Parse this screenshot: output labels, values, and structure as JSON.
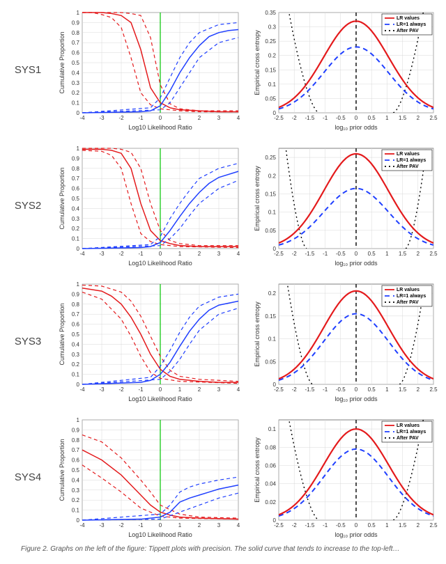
{
  "rows": [
    "SYS1",
    "SYS2",
    "SYS3",
    "SYS4"
  ],
  "colors": {
    "red": "#e41a1c",
    "blue": "#1f3fff",
    "green": "#00c400",
    "black": "#000000",
    "grid": "#d8d8d8",
    "bg": "#ffffff"
  },
  "tippett": {
    "xlabel": "Log10 Likelihood Ratio",
    "ylabel": "Cumulative Proportion",
    "xlim": [
      -4,
      4
    ],
    "ylim": [
      0,
      1
    ],
    "xticks": [
      -4,
      -3,
      -2,
      -1,
      0,
      1,
      2,
      3,
      4
    ],
    "yticks": [
      0,
      0.1,
      0.2,
      0.3,
      0.4,
      0.5,
      0.6,
      0.7,
      0.8,
      0.9,
      1
    ],
    "vline_x": 0,
    "line_width_main": 1.5,
    "line_width_dash": 1.2,
    "dash": "5,4",
    "sys": [
      {
        "red_main": [
          [
            -4,
            1.0
          ],
          [
            -3,
            1.0
          ],
          [
            -2.5,
            0.99
          ],
          [
            -2,
            0.97
          ],
          [
            -1.5,
            0.9
          ],
          [
            -1,
            0.63
          ],
          [
            -0.5,
            0.25
          ],
          [
            0,
            0.1
          ],
          [
            0.5,
            0.05
          ],
          [
            1,
            0.03
          ],
          [
            2,
            0.02
          ],
          [
            3,
            0.01
          ],
          [
            4,
            0.01
          ]
        ],
        "red_out_lo": [
          [
            -4,
            1.0
          ],
          [
            -3.5,
            1.0
          ],
          [
            -3,
            0.98
          ],
          [
            -2.5,
            0.95
          ],
          [
            -2,
            0.85
          ],
          [
            -1.5,
            0.55
          ],
          [
            -1,
            0.2
          ],
          [
            -0.5,
            0.08
          ],
          [
            0,
            0.04
          ],
          [
            1,
            0.02
          ],
          [
            2,
            0.01
          ],
          [
            4,
            0.01
          ]
        ],
        "red_out_hi": [
          [
            -4,
            1.0
          ],
          [
            -2,
            1.0
          ],
          [
            -1.5,
            0.99
          ],
          [
            -1,
            0.97
          ],
          [
            -0.5,
            0.75
          ],
          [
            0,
            0.28
          ],
          [
            0.5,
            0.09
          ],
          [
            1,
            0.04
          ],
          [
            2,
            0.02
          ],
          [
            4,
            0.02
          ]
        ],
        "blue_main": [
          [
            -4,
            0.0
          ],
          [
            -1,
            0.01
          ],
          [
            -0.5,
            0.02
          ],
          [
            0,
            0.07
          ],
          [
            0.5,
            0.22
          ],
          [
            1,
            0.4
          ],
          [
            1.5,
            0.55
          ],
          [
            2,
            0.67
          ],
          [
            2.5,
            0.76
          ],
          [
            3,
            0.8
          ],
          [
            3.5,
            0.82
          ],
          [
            4,
            0.83
          ]
        ],
        "blue_out_lo": [
          [
            -4,
            0.0
          ],
          [
            0,
            0.03
          ],
          [
            0.5,
            0.1
          ],
          [
            1,
            0.25
          ],
          [
            1.5,
            0.4
          ],
          [
            2,
            0.55
          ],
          [
            3,
            0.7
          ],
          [
            4,
            0.75
          ]
        ],
        "blue_out_hi": [
          [
            -4,
            0.0
          ],
          [
            -0.5,
            0.05
          ],
          [
            0,
            0.15
          ],
          [
            0.5,
            0.35
          ],
          [
            1,
            0.55
          ],
          [
            1.5,
            0.7
          ],
          [
            2,
            0.8
          ],
          [
            3,
            0.88
          ],
          [
            4,
            0.9
          ]
        ]
      },
      {
        "red_main": [
          [
            -4,
            0.99
          ],
          [
            -3,
            0.99
          ],
          [
            -2.5,
            0.98
          ],
          [
            -2,
            0.95
          ],
          [
            -1.5,
            0.8
          ],
          [
            -1,
            0.45
          ],
          [
            -0.5,
            0.18
          ],
          [
            0,
            0.08
          ],
          [
            0.5,
            0.05
          ],
          [
            1,
            0.03
          ],
          [
            2,
            0.02
          ],
          [
            4,
            0.02
          ]
        ],
        "red_out_lo": [
          [
            -4,
            0.98
          ],
          [
            -3,
            0.97
          ],
          [
            -2.5,
            0.93
          ],
          [
            -2,
            0.8
          ],
          [
            -1.5,
            0.45
          ],
          [
            -1,
            0.15
          ],
          [
            -0.5,
            0.07
          ],
          [
            0,
            0.04
          ],
          [
            1,
            0.02
          ],
          [
            4,
            0.01
          ]
        ],
        "red_out_hi": [
          [
            -4,
            1.0
          ],
          [
            -2.5,
            1.0
          ],
          [
            -2,
            0.99
          ],
          [
            -1.5,
            0.96
          ],
          [
            -1,
            0.8
          ],
          [
            -0.5,
            0.45
          ],
          [
            0,
            0.18
          ],
          [
            0.5,
            0.08
          ],
          [
            1,
            0.05
          ],
          [
            2,
            0.03
          ],
          [
            4,
            0.03
          ]
        ],
        "blue_main": [
          [
            -4,
            0.0
          ],
          [
            -1,
            0.01
          ],
          [
            -0.5,
            0.02
          ],
          [
            0,
            0.06
          ],
          [
            0.5,
            0.18
          ],
          [
            1,
            0.32
          ],
          [
            1.5,
            0.45
          ],
          [
            2,
            0.56
          ],
          [
            2.5,
            0.65
          ],
          [
            3,
            0.71
          ],
          [
            4,
            0.77
          ]
        ],
        "blue_out_lo": [
          [
            -4,
            0.0
          ],
          [
            0,
            0.03
          ],
          [
            0.5,
            0.1
          ],
          [
            1,
            0.2
          ],
          [
            1.5,
            0.33
          ],
          [
            2,
            0.45
          ],
          [
            3,
            0.6
          ],
          [
            4,
            0.68
          ]
        ],
        "blue_out_hi": [
          [
            -4,
            0.0
          ],
          [
            -0.5,
            0.04
          ],
          [
            0,
            0.12
          ],
          [
            0.5,
            0.3
          ],
          [
            1,
            0.45
          ],
          [
            1.5,
            0.58
          ],
          [
            2,
            0.7
          ],
          [
            3,
            0.8
          ],
          [
            4,
            0.85
          ]
        ]
      },
      {
        "red_main": [
          [
            -4,
            0.96
          ],
          [
            -3,
            0.93
          ],
          [
            -2.5,
            0.88
          ],
          [
            -2,
            0.8
          ],
          [
            -1.5,
            0.67
          ],
          [
            -1,
            0.5
          ],
          [
            -0.5,
            0.3
          ],
          [
            0,
            0.15
          ],
          [
            0.5,
            0.08
          ],
          [
            1,
            0.05
          ],
          [
            2,
            0.03
          ],
          [
            3,
            0.02
          ],
          [
            4,
            0.02
          ]
        ],
        "red_out_lo": [
          [
            -4,
            0.92
          ],
          [
            -3,
            0.85
          ],
          [
            -2,
            0.65
          ],
          [
            -1.5,
            0.48
          ],
          [
            -1,
            0.28
          ],
          [
            -0.5,
            0.12
          ],
          [
            0,
            0.06
          ],
          [
            1,
            0.03
          ],
          [
            4,
            0.01
          ]
        ],
        "red_out_hi": [
          [
            -4,
            0.99
          ],
          [
            -3,
            0.98
          ],
          [
            -2,
            0.92
          ],
          [
            -1.5,
            0.83
          ],
          [
            -1,
            0.68
          ],
          [
            -0.5,
            0.48
          ],
          [
            0,
            0.28
          ],
          [
            0.5,
            0.14
          ],
          [
            1,
            0.08
          ],
          [
            2,
            0.05
          ],
          [
            4,
            0.03
          ]
        ],
        "blue_main": [
          [
            -4,
            0.0
          ],
          [
            -1,
            0.02
          ],
          [
            -0.5,
            0.04
          ],
          [
            0,
            0.1
          ],
          [
            0.5,
            0.22
          ],
          [
            1,
            0.38
          ],
          [
            1.5,
            0.53
          ],
          [
            2,
            0.65
          ],
          [
            2.5,
            0.74
          ],
          [
            3,
            0.79
          ],
          [
            4,
            0.83
          ]
        ],
        "blue_out_lo": [
          [
            -4,
            0.0
          ],
          [
            0,
            0.05
          ],
          [
            0.5,
            0.13
          ],
          [
            1,
            0.25
          ],
          [
            1.5,
            0.4
          ],
          [
            2,
            0.54
          ],
          [
            3,
            0.7
          ],
          [
            4,
            0.76
          ]
        ],
        "blue_out_hi": [
          [
            -4,
            0.0
          ],
          [
            -0.5,
            0.07
          ],
          [
            0,
            0.18
          ],
          [
            0.5,
            0.34
          ],
          [
            1,
            0.52
          ],
          [
            1.5,
            0.67
          ],
          [
            2,
            0.78
          ],
          [
            3,
            0.87
          ],
          [
            4,
            0.9
          ]
        ]
      },
      {
        "red_main": [
          [
            -4,
            0.7
          ],
          [
            -3,
            0.6
          ],
          [
            -2,
            0.45
          ],
          [
            -1.5,
            0.35
          ],
          [
            -1,
            0.25
          ],
          [
            -0.5,
            0.15
          ],
          [
            0,
            0.08
          ],
          [
            0.5,
            0.05
          ],
          [
            1,
            0.03
          ],
          [
            2,
            0.02
          ],
          [
            4,
            0.01
          ]
        ],
        "red_out_lo": [
          [
            -4,
            0.55
          ],
          [
            -3,
            0.42
          ],
          [
            -2,
            0.28
          ],
          [
            -1,
            0.12
          ],
          [
            0,
            0.04
          ],
          [
            1,
            0.02
          ],
          [
            4,
            0.01
          ]
        ],
        "red_out_hi": [
          [
            -4,
            0.85
          ],
          [
            -3,
            0.78
          ],
          [
            -2,
            0.62
          ],
          [
            -1,
            0.4
          ],
          [
            -0.5,
            0.28
          ],
          [
            0,
            0.15
          ],
          [
            1,
            0.06
          ],
          [
            2,
            0.03
          ],
          [
            4,
            0.02
          ]
        ],
        "blue_main": [
          [
            -4,
            0.0
          ],
          [
            -1,
            0.01
          ],
          [
            0,
            0.03
          ],
          [
            0.5,
            0.08
          ],
          [
            1,
            0.18
          ],
          [
            1.5,
            0.22
          ],
          [
            2,
            0.25
          ],
          [
            2.5,
            0.28
          ],
          [
            3,
            0.31
          ],
          [
            4,
            0.35
          ]
        ],
        "blue_out_lo": [
          [
            -4,
            0.0
          ],
          [
            0,
            0.01
          ],
          [
            1,
            0.08
          ],
          [
            2,
            0.15
          ],
          [
            3,
            0.22
          ],
          [
            4,
            0.27
          ]
        ],
        "blue_out_hi": [
          [
            -4,
            0.0
          ],
          [
            0,
            0.06
          ],
          [
            0.5,
            0.15
          ],
          [
            1,
            0.28
          ],
          [
            1.5,
            0.33
          ],
          [
            2,
            0.36
          ],
          [
            3,
            0.4
          ],
          [
            4,
            0.43
          ]
        ]
      }
    ]
  },
  "ece": {
    "xlabel": "log₁₀ prior odds",
    "ylabel": "Empirical cross entropy",
    "xlim": [
      -2.5,
      2.5
    ],
    "xticks": [
      -2.5,
      -2,
      -1.5,
      -1,
      -0.5,
      0,
      0.5,
      1,
      1.5,
      2,
      2.5
    ],
    "vline_x": 0,
    "line_width_red": 2.2,
    "line_width_blue": 2.0,
    "dash_blue": "7,5",
    "dot_black": "2,4",
    "legend": [
      "LR values",
      "LR=1 always",
      "After PAV"
    ],
    "sys": [
      {
        "ymax": 0.35,
        "yticks": [
          0,
          0.05,
          0.1,
          0.15,
          0.2,
          0.25,
          0.3,
          0.35
        ],
        "red_peak": 0.32,
        "blue_peak": 0.23,
        "black_x": [
          -1.2,
          1.2
        ]
      },
      {
        "ymax": 0.275,
        "yticks": [
          0,
          0.05,
          0.1,
          0.15,
          0.2,
          0.25
        ],
        "red_peak": 0.26,
        "blue_peak": 0.165,
        "black_x": [
          -1.6,
          1.6
        ]
      },
      {
        "ymax": 0.22,
        "yticks": [
          0,
          0.05,
          0.1,
          0.15,
          0.2
        ],
        "red_peak": 0.205,
        "blue_peak": 0.155,
        "black_x": [
          -1.4,
          1.4
        ]
      },
      {
        "ymax": 0.11,
        "yticks": [
          0,
          0.02,
          0.04,
          0.06,
          0.08,
          0.1
        ],
        "red_peak": 0.1,
        "blue_peak": 0.078,
        "black_x": [
          -1.2,
          1.2
        ]
      }
    ]
  },
  "caption": "Figure 2. Graphs on the left of the figure: Tippett plots with precision. The solid curve that tends to increase to the top-left…"
}
